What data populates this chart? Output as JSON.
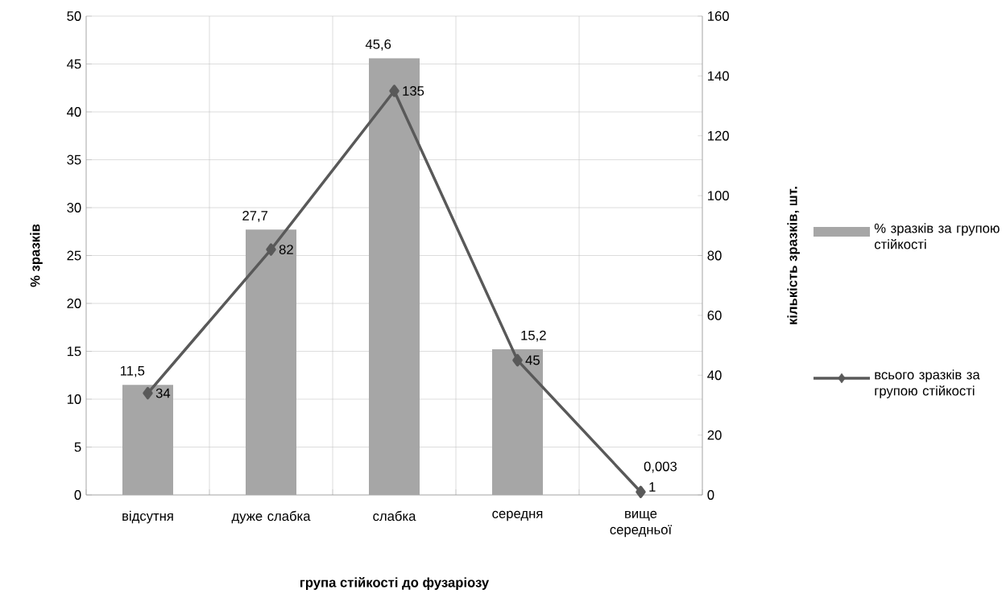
{
  "chart_data": {
    "type": "bar",
    "xlabel": "група стійкості до фузаріозу",
    "ylabel": "% зразків",
    "y2label": "кількість зразків, шт.",
    "categories": [
      "відсутня",
      "дуже слабка",
      "слабка",
      "середня",
      "вище середньої"
    ],
    "series": [
      {
        "name": "% зразків за групою стійкості",
        "type": "bar",
        "color": "#a6a6a6",
        "values": [
          11.5,
          27.7,
          45.6,
          15.2,
          0.003
        ],
        "value_labels": [
          "11,5",
          "27,7",
          "45,6",
          "15,2",
          "0,003"
        ]
      },
      {
        "name": "всього зразків за групою стійкості",
        "type": "line",
        "axis": "y2",
        "color": "#595959",
        "values": [
          34,
          82,
          135,
          45,
          1
        ],
        "value_labels": [
          "34",
          "82",
          "135",
          "45",
          "1"
        ]
      }
    ],
    "ylim": [
      0,
      50
    ],
    "yticks": [
      0,
      5,
      10,
      15,
      20,
      25,
      30,
      35,
      40,
      45,
      50
    ],
    "y2lim": [
      0,
      160
    ],
    "y2ticks": [
      0,
      20,
      40,
      60,
      80,
      100,
      120,
      140,
      160
    ],
    "grid": true,
    "legend": "right",
    "marker": "diamond",
    "line_style": "solid"
  }
}
